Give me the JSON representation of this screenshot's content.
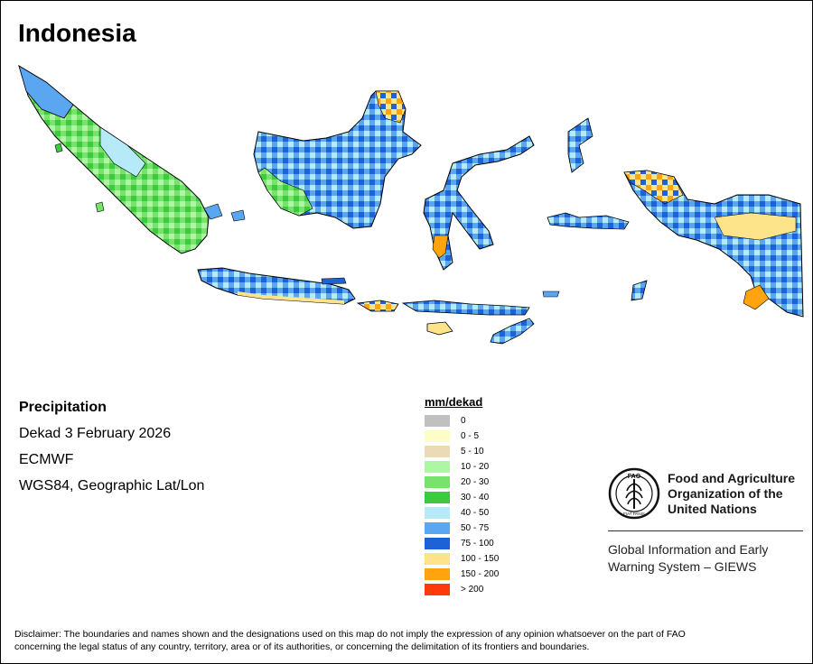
{
  "title": "Indonesia",
  "info": {
    "heading": "Precipitation",
    "period": "Dekad 3 February 2026",
    "source": "ECMWF",
    "projection": "WGS84, Geographic Lat/Lon"
  },
  "legend": {
    "title": "mm/dekad",
    "classes": [
      {
        "label": "0",
        "color": "#c0c0c0"
      },
      {
        "label": "0 - 5",
        "color": "#fdfdc8"
      },
      {
        "label": "5 - 10",
        "color": "#ecd9b6"
      },
      {
        "label": "10 - 20",
        "color": "#aef5a4"
      },
      {
        "label": "20 - 30",
        "color": "#77e36c"
      },
      {
        "label": "30 - 40",
        "color": "#3ccb3e"
      },
      {
        "label": "40 - 50",
        "color": "#b6eaf9"
      },
      {
        "label": "50 - 75",
        "color": "#5aa6f0"
      },
      {
        "label": "75 - 100",
        "color": "#1e62d8"
      },
      {
        "label": "100 - 150",
        "color": "#fde38a"
      },
      {
        "label": "150 - 200",
        "color": "#ffa40f"
      },
      {
        "label": "> 200",
        "color": "#ff3a0a"
      }
    ]
  },
  "fao": {
    "logo_letters": "FAO",
    "logo_motto": "FIAT PANIS",
    "name_line1": "Food and Agriculture",
    "name_line2": "Organization of the",
    "name_line3": "United Nations",
    "giews_line1": "Global Information and Early",
    "giews_line2": "Warning System – GIEWS"
  },
  "disclaimer_line1": "Disclaimer: The boundaries and names shown and the designations used on this map do not imply the expression of any opinion whatsoever on the part of FAO",
  "disclaimer_line2": "concerning the legal status of any country, territory, area or of its authorities, or concerning the delimitation of its frontiers and boundaries."
}
